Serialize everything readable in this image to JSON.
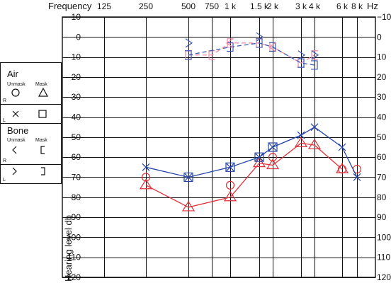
{
  "chart_data": {
    "type": "line",
    "title": "",
    "xlabel": "Frequency",
    "x_unit": "Hz",
    "ylabel": "Hearing level db",
    "x_ticks": [
      "125",
      "250",
      "500",
      "750",
      "1 k",
      "1.5 k",
      "2 k",
      "3 k",
      "4 k",
      "6 k",
      "8 k"
    ],
    "x_tick_values": [
      125,
      250,
      500,
      750,
      1000,
      1500,
      2000,
      3000,
      4000,
      6000,
      8000
    ],
    "ylim": [
      -10,
      120
    ],
    "y_ticks": [
      -10,
      0,
      10,
      20,
      30,
      40,
      50,
      60,
      70,
      80,
      90,
      100,
      110,
      120
    ],
    "y_reversed": true,
    "grid": true,
    "colors": {
      "right": "#e0303a",
      "left": "#2343a8",
      "right_bone": "#ee88a8",
      "left_bone": "#3c56b4"
    },
    "series": [
      {
        "key": "right_air",
        "color": "right",
        "dash": false,
        "symbol": "circle",
        "x": [
          250,
          1000,
          2000,
          6000,
          8000
        ],
        "y": [
          70,
          74,
          60,
          66,
          66
        ]
      },
      {
        "key": "right_air_masked",
        "color": "right",
        "dash": false,
        "symbol": "triangle",
        "x": [
          250,
          500,
          1000,
          1500,
          2000,
          3000,
          4000,
          6000
        ],
        "y": [
          74,
          85,
          80,
          63,
          64,
          53,
          54,
          66
        ]
      },
      {
        "key": "left_air",
        "color": "left",
        "dash": false,
        "symbol": "cross",
        "x": [
          250,
          500,
          1000,
          1500,
          2000,
          3000,
          4000,
          6000,
          8000
        ],
        "y": [
          65,
          70,
          65,
          60,
          55,
          49,
          45,
          55,
          70
        ]
      },
      {
        "key": "left_air_masked",
        "color": "left",
        "dash": false,
        "symbol": "square",
        "x": [
          500,
          1000,
          1500,
          2000
        ],
        "y": [
          70,
          65,
          60,
          55
        ]
      },
      {
        "key": "right_bone",
        "color": "right_bone",
        "dash": true,
        "symbol": "bracket-left",
        "x": [
          500,
          750,
          1000,
          1500,
          2000,
          3000,
          4000
        ],
        "y": [
          9,
          9,
          3,
          3,
          5,
          13,
          9
        ]
      },
      {
        "key": "left_bone",
        "color": "left_bone",
        "dash": true,
        "symbol": "bracket-right",
        "x": [
          500,
          1000,
          1500,
          2000,
          3000,
          4000
        ],
        "y": [
          9,
          5,
          3,
          5,
          13,
          14
        ]
      },
      {
        "key": "left_bone_unmasked",
        "color": "left_bone",
        "dash": false,
        "symbol": "angle-right",
        "x": [
          500,
          1500,
          3000,
          4000
        ],
        "y": [
          3,
          0,
          9,
          9
        ]
      },
      {
        "key": "right_bone_unmasked",
        "color": "right_bone",
        "dash": false,
        "symbol": "angle-left",
        "x": [
          1000,
          2000
        ],
        "y": [
          3,
          5
        ]
      }
    ],
    "legend": {
      "placement": "left",
      "air_title": "Air",
      "bone_title": "Bone",
      "unmask": "Unmask",
      "mask": "Mask",
      "right": "R",
      "left": "L"
    }
  }
}
